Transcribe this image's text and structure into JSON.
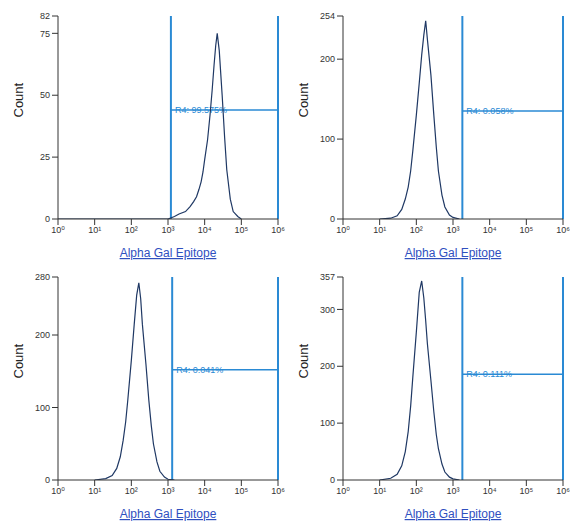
{
  "chart_data": [
    {
      "type": "line",
      "x_label": "Alpha Gal Epitope",
      "y_label": "Count",
      "log": "x",
      "color": "#1f3864",
      "x": [
        1,
        10,
        100,
        500,
        1000,
        1500,
        2000,
        3000,
        4000,
        5000,
        6000,
        7000,
        8000,
        9000,
        10000,
        12000,
        14000,
        16000,
        18000,
        20000,
        22000,
        25000,
        30000,
        35000,
        40000,
        50000,
        60000,
        80000,
        100000
      ],
      "values": [
        0,
        0,
        0,
        0,
        0,
        1,
        2,
        3,
        5,
        7,
        9,
        12,
        15,
        19,
        24,
        32,
        42,
        52,
        62,
        70,
        75,
        68,
        50,
        33,
        20,
        8,
        3,
        1,
        0
      ],
      "xlim": [
        1,
        1000000
      ],
      "xticks": [
        {
          "value": 1,
          "label": "10⁰"
        },
        {
          "value": 10,
          "label": "10¹"
        },
        {
          "value": 100,
          "label": "10²"
        },
        {
          "value": 1000,
          "label": "10³"
        },
        {
          "value": 10000,
          "label": "10⁴"
        },
        {
          "value": 100000,
          "label": "10⁵"
        },
        {
          "value": 1000000,
          "label": "10⁶"
        }
      ],
      "ylim": [
        0,
        82
      ],
      "yticks": [
        0,
        25,
        50,
        75,
        82
      ],
      "gate": {
        "label": "R4: 99.575%",
        "x": [
          1200,
          1000000
        ],
        "y": 44,
        "color": "#2a8ad4"
      }
    },
    {
      "type": "line",
      "x_label": "Alpha Gal Epitope",
      "y_label": "Count",
      "log": "x",
      "color": "#1f3864",
      "x": [
        10,
        20,
        30,
        40,
        50,
        60,
        70,
        80,
        100,
        120,
        140,
        160,
        180,
        200,
        250,
        300,
        350,
        400,
        500,
        600,
        800,
        1000,
        1500
      ],
      "values": [
        0,
        1,
        4,
        12,
        25,
        40,
        60,
        85,
        130,
        170,
        205,
        230,
        248,
        225,
        180,
        130,
        90,
        60,
        30,
        15,
        5,
        2,
        0
      ],
      "xlim": [
        1,
        1000000
      ],
      "xticks": [
        {
          "value": 1,
          "label": "10⁰"
        },
        {
          "value": 10,
          "label": "10¹"
        },
        {
          "value": 100,
          "label": "10²"
        },
        {
          "value": 1000,
          "label": "10³"
        },
        {
          "value": 10000,
          "label": "10⁴"
        },
        {
          "value": 100000,
          "label": "10⁵"
        },
        {
          "value": 1000000,
          "label": "10⁶"
        }
      ],
      "ylim": [
        0,
        254
      ],
      "yticks": [
        0,
        100,
        200,
        254
      ],
      "gate": {
        "label": "R4: 0.058%",
        "x": [
          1800,
          1000000
        ],
        "y": 135,
        "color": "#2a8ad4"
      }
    },
    {
      "type": "line",
      "x_label": "Alpha Gal Epitope",
      "y_label": "Count",
      "log": "x",
      "color": "#1f3864",
      "x": [
        10,
        20,
        30,
        40,
        50,
        60,
        70,
        80,
        100,
        120,
        140,
        160,
        180,
        200,
        250,
        300,
        350,
        400,
        500,
        600,
        800,
        1000,
        1500
      ],
      "values": [
        0,
        2,
        6,
        16,
        32,
        55,
        80,
        110,
        165,
        215,
        255,
        272,
        250,
        215,
        160,
        110,
        75,
        50,
        25,
        12,
        4,
        1,
        0
      ],
      "xlim": [
        1,
        1000000
      ],
      "xticks": [
        {
          "value": 1,
          "label": "10⁰"
        },
        {
          "value": 10,
          "label": "10¹"
        },
        {
          "value": 100,
          "label": "10²"
        },
        {
          "value": 1000,
          "label": "10³"
        },
        {
          "value": 10000,
          "label": "10⁴"
        },
        {
          "value": 100000,
          "label": "10⁵"
        },
        {
          "value": 1000000,
          "label": "10⁶"
        }
      ],
      "ylim": [
        0,
        280
      ],
      "yticks": [
        0,
        100,
        200,
        280
      ],
      "gate": {
        "label": "R4: 0.041%",
        "x": [
          1300,
          1000000
        ],
        "y": 152,
        "color": "#2a8ad4"
      }
    },
    {
      "type": "line",
      "x_label": "Alpha Gal Epitope",
      "y_label": "Count",
      "log": "x",
      "color": "#1f3864",
      "x": [
        10,
        20,
        30,
        40,
        50,
        60,
        70,
        80,
        100,
        120,
        140,
        160,
        180,
        200,
        250,
        300,
        350,
        400,
        500,
        600,
        800,
        1000,
        1500
      ],
      "values": [
        0,
        3,
        10,
        25,
        50,
        85,
        130,
        180,
        260,
        330,
        350,
        320,
        280,
        240,
        175,
        120,
        80,
        55,
        28,
        14,
        5,
        2,
        0
      ],
      "xlim": [
        1,
        1000000
      ],
      "xticks": [
        {
          "value": 1,
          "label": "10⁰"
        },
        {
          "value": 10,
          "label": "10¹"
        },
        {
          "value": 100,
          "label": "10²"
        },
        {
          "value": 1000,
          "label": "10³"
        },
        {
          "value": 10000,
          "label": "10⁴"
        },
        {
          "value": 100000,
          "label": "10⁵"
        },
        {
          "value": 1000000,
          "label": "10⁶"
        }
      ],
      "ylim": [
        0,
        357
      ],
      "yticks": [
        0,
        100,
        200,
        300,
        357
      ],
      "gate": {
        "label": "R4: 0.111%",
        "x": [
          1800,
          1000000
        ],
        "y": 186,
        "color": "#2a8ad4"
      }
    }
  ]
}
